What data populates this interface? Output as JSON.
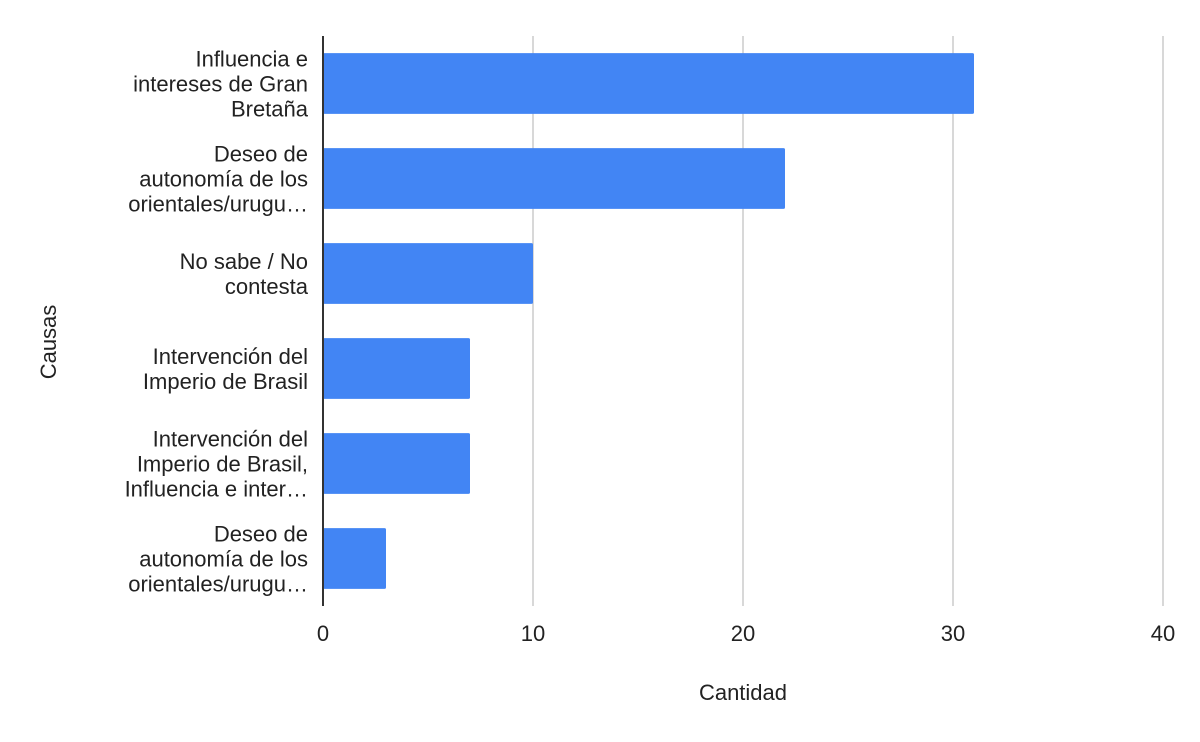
{
  "chart_data": {
    "type": "bar",
    "orientation": "horizontal",
    "xlabel": "Cantidad",
    "ylabel": "Causas",
    "xlim": [
      0,
      40
    ],
    "xticks": [
      0,
      10,
      20,
      30,
      40
    ],
    "grid": true,
    "bar_color": "#4285f4",
    "categories": [
      [
        "Influencia e",
        "intereses de Gran",
        "Bretaña"
      ],
      [
        "Deseo de",
        "autonomía de los",
        "orientales/urugu…"
      ],
      [
        "No sabe / No",
        "contesta"
      ],
      [
        "Intervención del",
        "Imperio de Brasil"
      ],
      [
        "Intervención del",
        "Imperio de Brasil,",
        "Influencia e inter…"
      ],
      [
        "Deseo de",
        "autonomía de los",
        "orientales/urugu…"
      ]
    ],
    "values": [
      31,
      22,
      10,
      7,
      7,
      3
    ]
  }
}
